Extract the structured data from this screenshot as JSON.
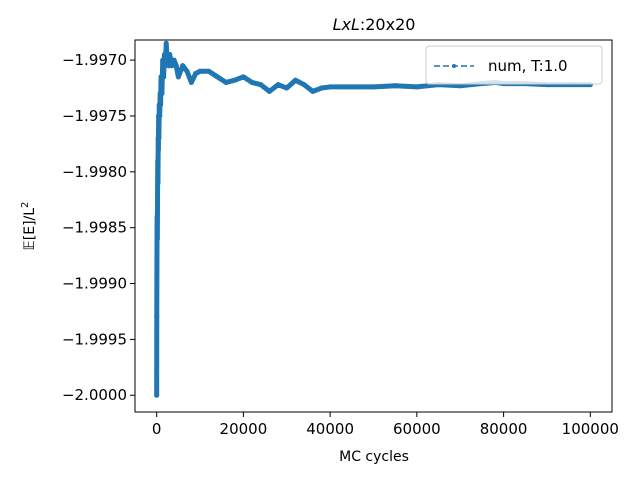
{
  "chart_data": {
    "type": "line",
    "title_italic": "LxL",
    "title_rest": ":20x20",
    "xlabel": "MC cycles",
    "ylabel_main": "𝔼[E]/L",
    "ylabel_sup": "2",
    "xlim": [
      -5000,
      105000
    ],
    "ylim": [
      -2.00015,
      -1.99682
    ],
    "xticks": [
      0,
      20000,
      40000,
      60000,
      80000,
      100000
    ],
    "xtick_labels": [
      "0",
      "20000",
      "40000",
      "60000",
      "80000",
      "100000"
    ],
    "yticks": [
      -2.0,
      -1.9995,
      -1.999,
      -1.9985,
      -1.998,
      -1.9975,
      -1.997
    ],
    "ytick_labels": [
      "−2.0000",
      "−1.9995",
      "−1.9990",
      "−1.9985",
      "−1.9980",
      "−1.9975",
      "−1.9970"
    ],
    "grid": false,
    "legend_position": "top-right",
    "line_color": "#1f77b4",
    "series": [
      {
        "name": "num, T:1.0",
        "x": [
          0,
          20,
          50,
          100,
          150,
          200,
          250,
          300,
          350,
          400,
          450,
          500,
          600,
          700,
          800,
          900,
          1000,
          1200,
          1400,
          1600,
          1800,
          2000,
          2200,
          2400,
          2600,
          2800,
          3000,
          3500,
          4000,
          4500,
          5000,
          6000,
          7000,
          8000,
          9000,
          10000,
          12000,
          14000,
          16000,
          18000,
          20000,
          22000,
          24000,
          26000,
          28000,
          30000,
          32000,
          34000,
          36000,
          38000,
          40000,
          45000,
          50000,
          55000,
          60000,
          65000,
          70000,
          75000,
          78000,
          80000,
          85000,
          90000,
          95000,
          100000
        ],
        "y": [
          -2.0,
          -1.9993,
          -1.9989,
          -1.9984,
          -1.9986,
          -1.9982,
          -1.9979,
          -1.9981,
          -1.9977,
          -1.9978,
          -1.9975,
          -1.9977,
          -1.9974,
          -1.9975,
          -1.9973,
          -1.9974,
          -1.99715,
          -1.9973,
          -1.997,
          -1.99715,
          -1.99695,
          -1.99705,
          -1.99685,
          -1.997,
          -1.99695,
          -1.99705,
          -1.99695,
          -1.99705,
          -1.997,
          -1.99705,
          -1.99715,
          -1.99705,
          -1.9971,
          -1.9972,
          -1.99712,
          -1.9971,
          -1.9971,
          -1.99715,
          -1.9972,
          -1.99718,
          -1.99715,
          -1.9972,
          -1.99722,
          -1.99728,
          -1.99722,
          -1.99725,
          -1.99718,
          -1.99722,
          -1.99728,
          -1.99725,
          -1.99724,
          -1.99724,
          -1.99724,
          -1.99723,
          -1.99724,
          -1.99722,
          -1.99723,
          -1.99721,
          -1.9972,
          -1.99721,
          -1.99721,
          -1.99722,
          -1.99722,
          -1.99722
        ]
      }
    ]
  }
}
